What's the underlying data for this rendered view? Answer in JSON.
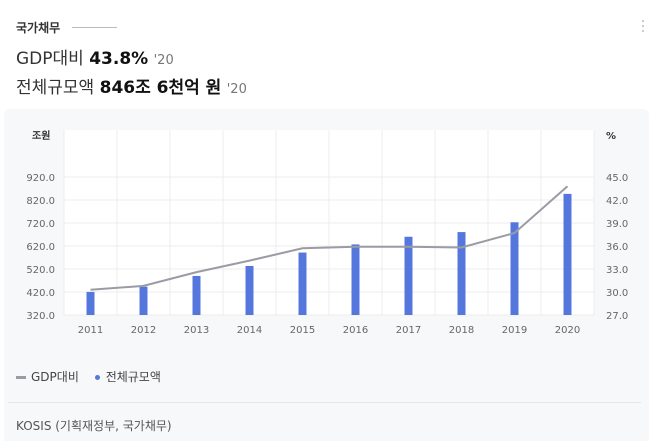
{
  "header": {
    "section_title": "국가채무",
    "metric1": {
      "label": "GDP대비",
      "value": "43.8%",
      "year": "'20"
    },
    "metric2": {
      "label": "전체규모액",
      "value": "846조 6천억 원",
      "year": "'20"
    }
  },
  "icons": {
    "more": "more-vertical-icon"
  },
  "colors": {
    "bar": "#5577dd",
    "line": "#9a9ca3",
    "panel": "#f7f8fa"
  },
  "legend": {
    "line_label": "GDP대비",
    "bar_label": "전체규모액"
  },
  "source": "KOSIS (기획재정부, 국가채무)",
  "chart_data": {
    "type": "bar",
    "categories": [
      "2011",
      "2012",
      "2013",
      "2014",
      "2015",
      "2016",
      "2017",
      "2018",
      "2019",
      "2020"
    ],
    "series": [
      {
        "name": "전체규모액",
        "kind": "bar",
        "axis": "left",
        "values": [
          420.5,
          443.1,
          489.8,
          533.2,
          591.5,
          626.9,
          660.2,
          680.5,
          723.2,
          846.6
        ]
      },
      {
        "name": "GDP대비",
        "kind": "line",
        "axis": "right",
        "values": [
          30.3,
          30.8,
          32.6,
          34.1,
          35.7,
          35.9,
          35.9,
          35.8,
          37.7,
          43.8
        ]
      }
    ],
    "left_axis": {
      "unit": "조원",
      "ylim": [
        320,
        920
      ],
      "ticks": [
        "320.0",
        "420.0",
        "520.0",
        "620.0",
        "720.0",
        "820.0",
        "920.0"
      ]
    },
    "right_axis": {
      "unit": "%",
      "ylim": [
        27,
        45
      ],
      "ticks": [
        "27.0",
        "30.0",
        "33.0",
        "36.0",
        "39.0",
        "42.0",
        "45.0"
      ]
    },
    "grid": true,
    "legend_position": "bottom-left"
  }
}
